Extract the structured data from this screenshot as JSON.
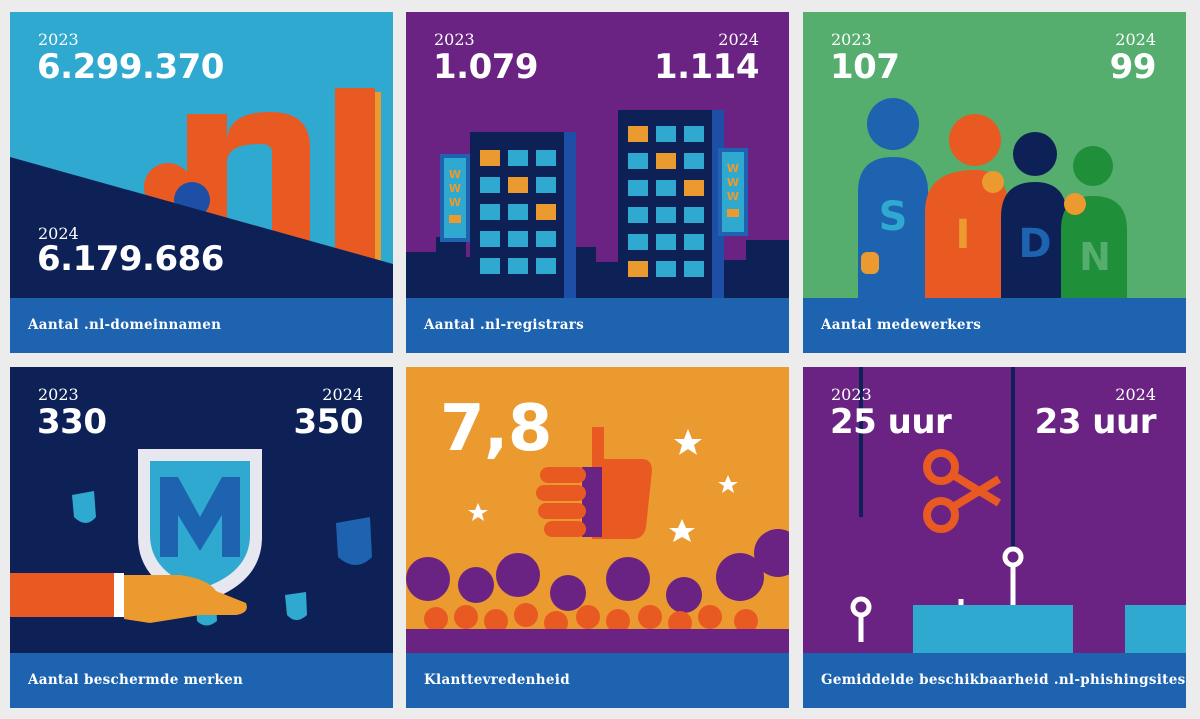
{
  "cards": [
    {
      "caption": "Aantal .nl-domeinnamen",
      "year_a": "2023",
      "value_a": "6.299.370",
      "year_b": "2024",
      "value_b": "6.179.686"
    },
    {
      "caption": "Aantal .nl-registrars",
      "year_a": "2023",
      "value_a": "1.079",
      "year_b": "2024",
      "value_b": "1.114"
    },
    {
      "caption": "Aantal medewerkers",
      "year_a": "2023",
      "value_a": "107",
      "year_b": "2024",
      "value_b": "99"
    },
    {
      "caption": "Aantal beschermde merken",
      "year_a": "2023",
      "value_a": "330",
      "year_b": "2024",
      "value_b": "350"
    },
    {
      "caption": "Klanttevredenheid",
      "value": "7,8"
    },
    {
      "caption": "Gemiddelde beschikbaarheid .nl-phishingsites",
      "year_a": "2023",
      "value_a": "25 uur",
      "year_b": "2024",
      "value_b": "23 uur"
    }
  ],
  "illustration_text": {
    "nl_logo": ".nl",
    "www_sign": "WWW",
    "sidn_letters": [
      "S",
      "I",
      "D",
      "N"
    ]
  },
  "colors": {
    "caption_bar": "#1d63b0",
    "cyan": "#2fa9d0",
    "navy": "#0e2157",
    "purple": "#6a2382",
    "green": "#55ad6e",
    "orange": "#e85a22",
    "amber": "#eb9a2f"
  }
}
